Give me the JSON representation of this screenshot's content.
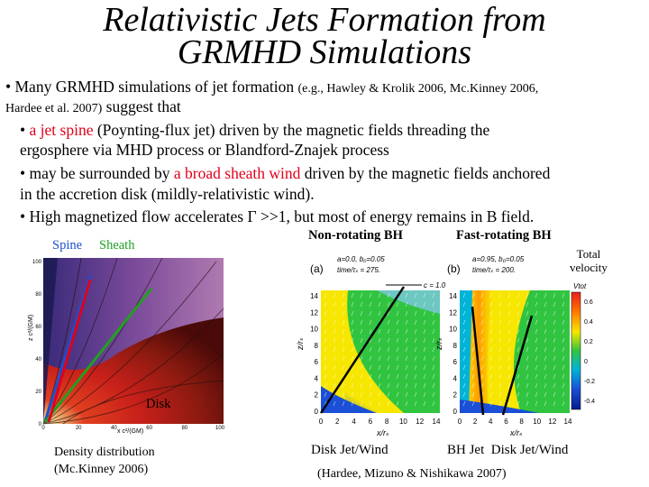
{
  "title": {
    "line1": "Relativistic Jets Formation from",
    "line2": "GRMHD Simulations"
  },
  "bullets": {
    "b1_main": "• Many GRMHD simulations of jet formation",
    "b1_refs": "(e.g., Hawley & Krolik 2006, Mc.Kinney 2006,",
    "b1_refs2": "Hardee et al. 2007)",
    "b1_tail": "suggest that",
    "b2_prefix": "• ",
    "b2_red": "a jet spine",
    "b2_rest": " (Poynting-flux jet) driven by the magnetic fields threading the",
    "b2_line2": "ergosphere via MHD process or Blandford-Znajek process",
    "b3_prefix": "• may be surrounded by ",
    "b3_red": "a broad sheath wind",
    "b3_rest": " driven by the magnetic fields anchored",
    "b3_line2": "in the accretion disk (mildly-relativistic wind).",
    "b4": "• High magnetized flow accelerates Γ >>1, but most of energy remains in B field."
  },
  "left_figure": {
    "spine_label": "Spine",
    "sheath_label": "Sheath",
    "disk_label": "Disk",
    "y_axis": "z c²/(GM)",
    "x_axis": "x c²/(GM)",
    "y_ticks": [
      "100",
      "80",
      "60",
      "40",
      "20",
      "0"
    ],
    "x_ticks": [
      "0",
      "20",
      "40",
      "60",
      "80",
      "100"
    ],
    "caption1": "Density distribution",
    "caption2": "(Mc.Kinney 2006)"
  },
  "right_figure": {
    "label_nonrot": "Non-rotating BH",
    "label_fastrot": "Fast-rotating BH",
    "total_velocity_1": "Total",
    "total_velocity_2": "velocity",
    "panel_a": "(a)",
    "panel_b": "(b)",
    "params_a1": "a=0.0, b₀=0.05",
    "params_a2": "time/τₛ = 275.",
    "params_b1": "a=0.95, b₀=0.05",
    "params_b2": "time/τₛ = 200.",
    "c_label": "c = 1.0",
    "vtot_label": "Vtot",
    "y_axis": "z/rₛ",
    "x_axis": "x/rₛ",
    "y_ticks": [
      "14",
      "12",
      "10",
      "8",
      "6",
      "4",
      "2",
      "0"
    ],
    "x_ticks": [
      "0",
      "2",
      "4",
      "6",
      "8",
      "10",
      "12",
      "14"
    ],
    "colorbar_ticks": [
      "0.6",
      "0.4",
      "0.2",
      "0",
      "-0.2",
      "-0.4"
    ],
    "colorbar_colors": [
      "#e81d1d",
      "#ff7a00",
      "#f7e600",
      "#31c441",
      "#00b4d8",
      "#1a4fd6",
      "#0a1a8a"
    ],
    "caption_left": "Disk Jet/Wind",
    "caption_right": "BH Jet  Disk Jet/Wind",
    "credit": "(Hardee, Mizuno & Nishikawa 2007)"
  }
}
